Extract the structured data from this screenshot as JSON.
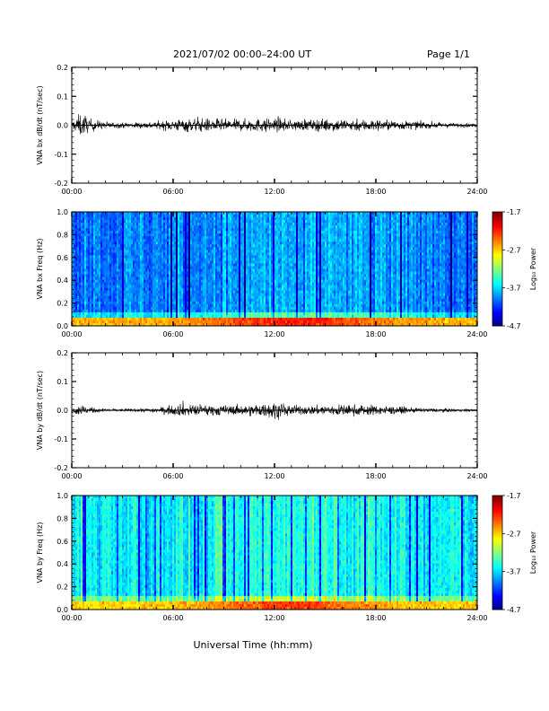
{
  "header": {
    "title": "2021/07/02  00:00–24:00 UT",
    "page": "Page 1/1"
  },
  "xlabel": "Universal Time (hh:mm)",
  "colorbar": {
    "label": "Log₁₀ Power",
    "ticks": [
      "-1.7",
      "-2.7",
      "-3.7",
      "-4.7"
    ],
    "range": [
      -4.7,
      -1.7
    ]
  },
  "chart_data": [
    {
      "type": "line",
      "name": "bx-waveform",
      "ylabel": "VNA bx dB/dt (nT/sec)",
      "xlim": [
        0,
        24
      ],
      "ylim": [
        -0.2,
        0.2
      ],
      "xticks": [
        "00:00",
        "06:00",
        "12:00",
        "18:00",
        "24:00"
      ],
      "yticks": [
        "0.2",
        "0.1",
        "0.0",
        "-0.1",
        "-0.2"
      ],
      "envelope_hours": [
        0,
        0.5,
        1,
        1.5,
        2,
        3,
        4,
        5,
        6,
        7,
        8,
        9,
        10,
        11,
        12,
        13,
        14,
        15,
        16,
        17,
        18,
        19,
        20,
        21,
        22,
        23,
        24
      ],
      "envelope_amplitude": [
        0.02,
        0.07,
        0.04,
        0.03,
        0.02,
        0.015,
        0.018,
        0.022,
        0.035,
        0.04,
        0.04,
        0.035,
        0.035,
        0.038,
        0.04,
        0.03,
        0.032,
        0.038,
        0.038,
        0.035,
        0.035,
        0.03,
        0.025,
        0.02,
        0.015,
        0.012,
        0.01
      ]
    },
    {
      "type": "heatmap",
      "name": "bx-spectrogram",
      "ylabel": "VNA bx Freq (Hz)",
      "xlim": [
        0,
        24
      ],
      "ylim": [
        0.0,
        1.0
      ],
      "xticks": [
        "00:00",
        "06:00",
        "12:00",
        "18:00",
        "24:00"
      ],
      "yticks": [
        "1.0",
        "0.8",
        "0.6",
        "0.4",
        "0.2",
        "0.0"
      ],
      "zlim": [
        -4.7,
        -1.7
      ],
      "background_level": -3.95,
      "low_freq_level": -2.6
    },
    {
      "type": "line",
      "name": "by-waveform",
      "ylabel": "VNA by dB/dt (nT/sec)",
      "xlim": [
        0,
        24
      ],
      "ylim": [
        -0.2,
        0.2
      ],
      "xticks": [
        "00:00",
        "06:00",
        "12:00",
        "18:00",
        "24:00"
      ],
      "yticks": [
        "0.2",
        "0.1",
        "0.0",
        "-0.1",
        "-0.2"
      ],
      "envelope_hours": [
        0,
        0.5,
        1,
        1.5,
        2,
        3,
        4,
        5,
        6,
        7,
        8,
        9,
        10,
        11,
        12,
        13,
        14,
        15,
        16,
        17,
        18,
        19,
        20,
        21,
        22,
        23,
        24
      ],
      "envelope_amplitude": [
        0.015,
        0.04,
        0.02,
        0.012,
        0.01,
        0.008,
        0.01,
        0.015,
        0.03,
        0.035,
        0.035,
        0.03,
        0.03,
        0.035,
        0.05,
        0.03,
        0.025,
        0.032,
        0.035,
        0.032,
        0.03,
        0.025,
        0.015,
        0.012,
        0.01,
        0.008,
        0.008
      ]
    },
    {
      "type": "heatmap",
      "name": "by-spectrogram",
      "ylabel": "VNA by Freq (Hz)",
      "xlim": [
        0,
        24
      ],
      "ylim": [
        0.0,
        1.0
      ],
      "xticks": [
        "00:00",
        "06:00",
        "12:00",
        "18:00",
        "24:00"
      ],
      "yticks": [
        "1.0",
        "0.8",
        "0.6",
        "0.4",
        "0.2",
        "0.0"
      ],
      "zlim": [
        -4.7,
        -1.7
      ],
      "background_level": -3.6,
      "low_freq_level": -2.7
    }
  ]
}
